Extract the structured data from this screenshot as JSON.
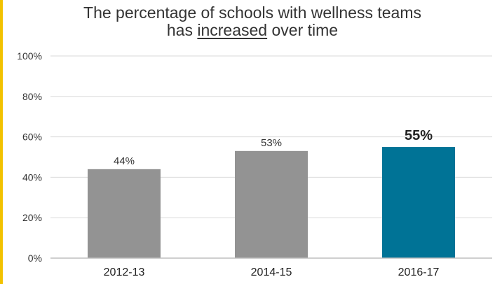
{
  "colors": {
    "accent_bar": "#f2c200",
    "bar_default": "#939393",
    "bar_highlight": "#007396",
    "gridline": "#d9d9d9",
    "axis": "#bfbfbf"
  },
  "chart_data": {
    "type": "bar",
    "title_before": "The percentage of schools with wellness teams",
    "title_line2_pre": "has ",
    "title_underlined": "increased",
    "title_line2_post": " over time",
    "categories": [
      "2012-13",
      "2014-15",
      "2016-17"
    ],
    "values": [
      44,
      53,
      55
    ],
    "value_labels": [
      "44%",
      "53%",
      "55%"
    ],
    "highlight_index": 2,
    "ylim": [
      0,
      100
    ],
    "yticks": [
      0,
      20,
      40,
      60,
      80,
      100
    ],
    "ytick_labels": [
      "0%",
      "20%",
      "40%",
      "60%",
      "80%",
      "100%"
    ],
    "xlabel": "",
    "ylabel": "",
    "grid": true,
    "legend": "none"
  }
}
